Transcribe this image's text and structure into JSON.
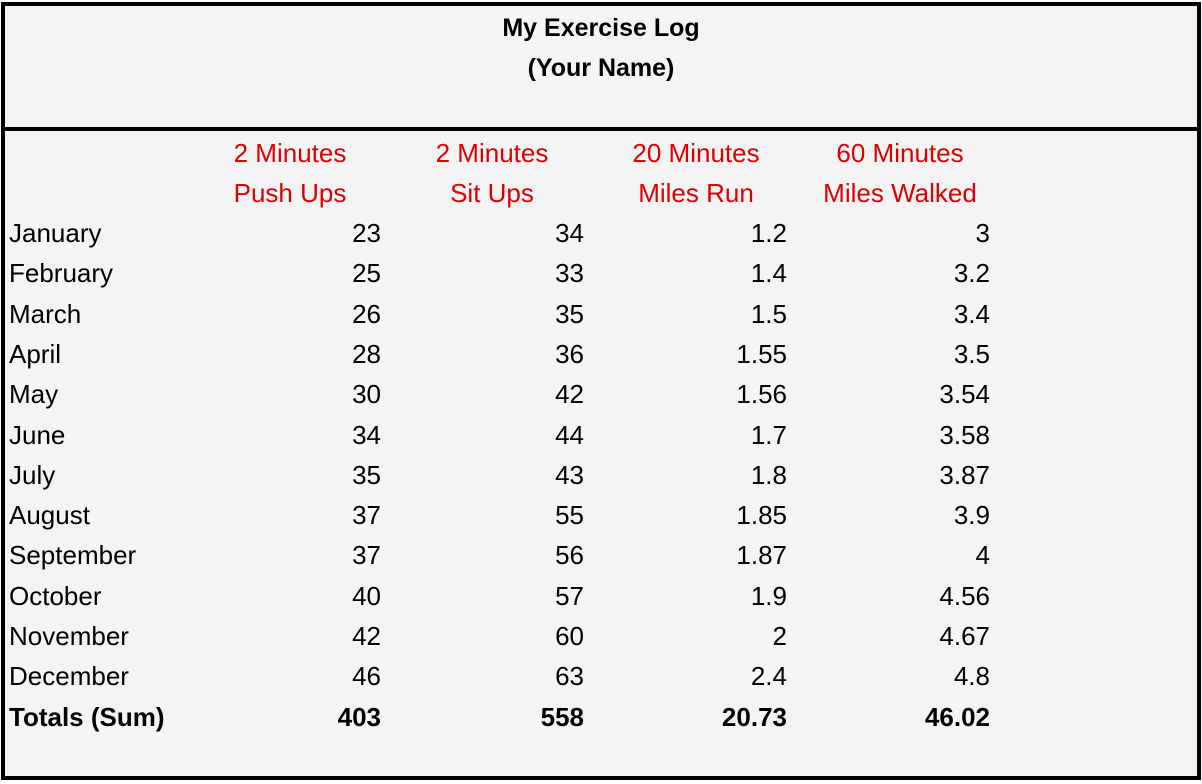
{
  "title": {
    "line1": "My Exercise Log",
    "line2": "(Your Name)"
  },
  "colors": {
    "header_text": "#e00000",
    "border": "#000000",
    "background": "#f4f4f4"
  },
  "columns": [
    {
      "line1": "2 Minutes",
      "line2": "Push Ups"
    },
    {
      "line1": "2 Minutes",
      "line2": "Sit Ups"
    },
    {
      "line1": "20 Minutes",
      "line2": "Miles Run"
    },
    {
      "line1": "60 Minutes",
      "line2": "Miles Walked"
    }
  ],
  "rows": [
    {
      "label": "January",
      "values": [
        "23",
        "34",
        "1.2",
        "3"
      ]
    },
    {
      "label": "February",
      "values": [
        "25",
        "33",
        "1.4",
        "3.2"
      ]
    },
    {
      "label": "March",
      "values": [
        "26",
        "35",
        "1.5",
        "3.4"
      ]
    },
    {
      "label": "April",
      "values": [
        "28",
        "36",
        "1.55",
        "3.5"
      ]
    },
    {
      "label": "May",
      "values": [
        "30",
        "42",
        "1.56",
        "3.54"
      ]
    },
    {
      "label": "June",
      "values": [
        "34",
        "44",
        "1.7",
        "3.58"
      ]
    },
    {
      "label": "July",
      "values": [
        "35",
        "43",
        "1.8",
        "3.87"
      ]
    },
    {
      "label": "August",
      "values": [
        "37",
        "55",
        "1.85",
        "3.9"
      ]
    },
    {
      "label": "September",
      "values": [
        "37",
        "56",
        "1.87",
        "4"
      ]
    },
    {
      "label": "October",
      "values": [
        "40",
        "57",
        "1.9",
        "4.56"
      ]
    },
    {
      "label": "November",
      "values": [
        "42",
        "60",
        "2",
        "4.67"
      ]
    },
    {
      "label": "December",
      "values": [
        "46",
        "63",
        "2.4",
        "4.8"
      ]
    }
  ],
  "totals": {
    "label": "Totals (Sum)",
    "values": [
      "403",
      "558",
      "20.73",
      "46.02"
    ]
  }
}
